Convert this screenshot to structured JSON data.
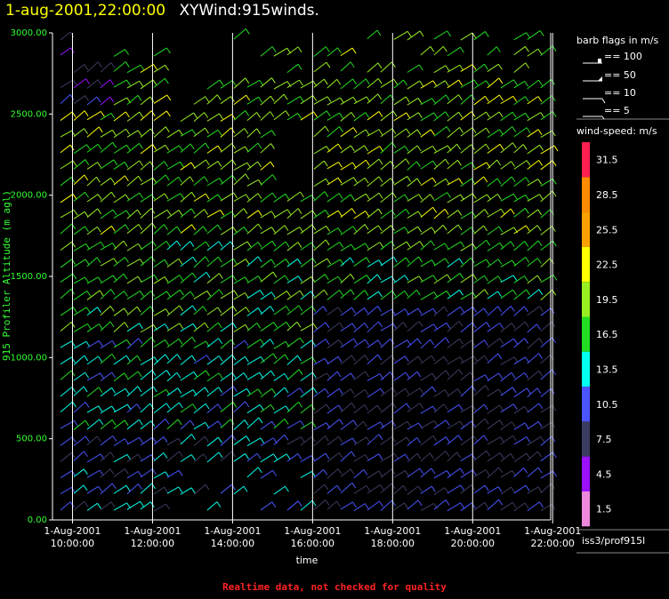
{
  "header": {
    "date": "1-aug-2001,22:00:00",
    "name": "XYWind:915winds."
  },
  "footer": "Realtime data, not checked for quality",
  "legend": {
    "flags_title": "barb flags in m/s",
    "flags": [
      "== 100",
      "== 50",
      "== 10",
      "== 5"
    ],
    "speed_title": "wind-speed: m/s",
    "speed_ticks": [
      "31.5",
      "28.5",
      "25.5",
      "22.5",
      "19.5",
      "16.5",
      "13.5",
      "10.5",
      "7.5",
      "4.5",
      "1.5"
    ],
    "source": "iss3/prof915l"
  },
  "chart_data": {
    "type": "scatter",
    "subtype": "wind-barbs",
    "ylabel": "915 Profiler Altitude (m agl)",
    "xlabel": "time",
    "ylim": [
      0,
      3000
    ],
    "yticks": [
      "0.00",
      "500.00",
      "1000.00",
      "1500.00",
      "2000.00",
      "2500.00",
      "3000.00"
    ],
    "xticks": [
      {
        "l1": "1-Aug-2001",
        "l2": "10:00:00"
      },
      {
        "l1": "1-Aug-2001",
        "l2": "12:00:00"
      },
      {
        "l1": "1-Aug-2001",
        "l2": "14:00:00"
      },
      {
        "l1": "1-Aug-2001",
        "l2": "16:00:00"
      },
      {
        "l1": "1-Aug-2001",
        "l2": "18:00:00"
      },
      {
        "l1": "1-Aug-2001",
        "l2": "20:00:00"
      },
      {
        "l1": "1-Aug-2001",
        "l2": "22:00:00"
      }
    ],
    "xlim_hours": [
      9.5,
      21.95
    ],
    "profile_interval_minutes": 20,
    "colorbar_colors": [
      "#ff2050",
      "#ff8c00",
      "#ffa000",
      "#ffff00",
      "#99ee22",
      "#22dd22",
      "#00ffee",
      "#4a55ff",
      "#3c3c60",
      "#9a10ff",
      "#ee88dd"
    ],
    "grid": true
  }
}
